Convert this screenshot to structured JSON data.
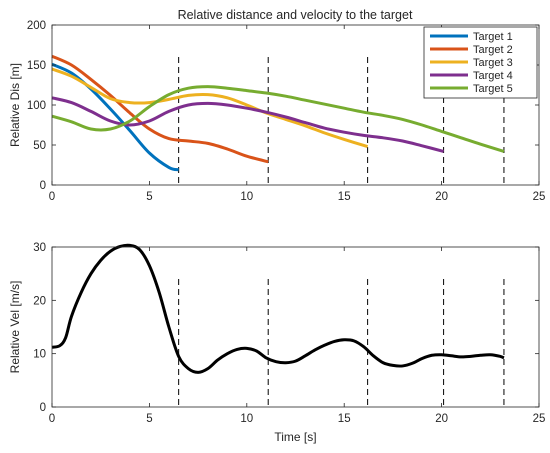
{
  "chart_data": [
    {
      "type": "line",
      "title": "Relative distance and velocity to the target",
      "xlabel": "",
      "ylabel": "Relative Dis [m]",
      "xlim": [
        0,
        25
      ],
      "ylim": [
        0,
        200
      ],
      "xticks": [
        0,
        5,
        10,
        15,
        20,
        25
      ],
      "yticks": [
        0,
        50,
        100,
        150,
        200
      ],
      "grid": false,
      "legend_position": "top-right",
      "vlines": [
        6.5,
        11.1,
        16.2,
        20.1,
        23.2
      ],
      "series": [
        {
          "name": "Target 1",
          "color": "#0072BD",
          "x": [
            0,
            1,
            2,
            3,
            4,
            5,
            6,
            6.5
          ],
          "y": [
            151,
            140,
            120,
            95,
            68,
            40,
            22,
            19
          ]
        },
        {
          "name": "Target 2",
          "color": "#D95319",
          "x": [
            0,
            1,
            2,
            3,
            4,
            5,
            6,
            7,
            8,
            9,
            10,
            11.1
          ],
          "y": [
            161,
            150,
            132,
            112,
            90,
            70,
            58,
            55,
            52,
            45,
            36,
            29
          ]
        },
        {
          "name": "Target 3",
          "color": "#EDB120",
          "x": [
            0,
            1,
            2,
            3,
            4,
            5,
            6,
            7,
            8,
            9,
            10,
            11,
            12,
            13,
            14,
            15,
            16.2
          ],
          "y": [
            145,
            136,
            122,
            108,
            103,
            103,
            107,
            112,
            113,
            109,
            100,
            90,
            82,
            74,
            65,
            57,
            48
          ]
        },
        {
          "name": "Target 4",
          "color": "#7E2F8E",
          "x": [
            0,
            1,
            2,
            3,
            4,
            5,
            6,
            7,
            8,
            9,
            10,
            11,
            12,
            13,
            14,
            15,
            16,
            17,
            18,
            19,
            20.1
          ],
          "y": [
            109,
            103,
            92,
            80,
            75,
            80,
            92,
            100,
            102,
            100,
            96,
            91,
            85,
            78,
            71,
            66,
            62,
            59,
            55,
            49,
            42
          ]
        },
        {
          "name": "Target 5",
          "color": "#77AC30",
          "x": [
            0,
            1,
            2,
            3,
            4,
            5,
            6,
            7,
            8,
            9,
            10,
            11,
            12,
            13,
            14,
            15,
            16,
            17,
            18,
            19,
            20,
            21,
            22,
            23.2
          ],
          "y": [
            86,
            79,
            70,
            70,
            80,
            98,
            113,
            121,
            123,
            121,
            118,
            115,
            111,
            106,
            101,
            96,
            91,
            87,
            82,
            75,
            67,
            59,
            51,
            42
          ]
        }
      ]
    },
    {
      "type": "line",
      "title": "",
      "xlabel": "Time [s]",
      "ylabel": "Relative Vel [m/s]",
      "xlim": [
        0,
        25
      ],
      "ylim": [
        0,
        30
      ],
      "xticks": [
        0,
        5,
        10,
        15,
        20,
        25
      ],
      "yticks": [
        0,
        10,
        20,
        30
      ],
      "grid": false,
      "vlines": [
        6.5,
        11.1,
        16.2,
        20.1,
        23.2
      ],
      "series": [
        {
          "color": "#000000",
          "x": [
            0,
            0.4,
            0.7,
            1,
            1.5,
            2,
            2.5,
            3,
            3.5,
            4,
            4.5,
            5,
            5.5,
            6,
            6.5,
            7,
            7.5,
            8,
            8.5,
            9,
            9.5,
            10,
            10.5,
            11,
            11.5,
            12,
            12.5,
            13,
            13.5,
            14,
            14.5,
            15,
            15.5,
            16,
            16.5,
            17,
            17.5,
            18,
            18.5,
            19,
            19.5,
            20,
            20.5,
            21,
            21.5,
            22,
            22.5,
            23,
            23.2
          ],
          "y": [
            11.2,
            11.5,
            13,
            17,
            21.5,
            25,
            27.5,
            29.2,
            30.1,
            30.3,
            29.5,
            26.5,
            21.5,
            15,
            9.5,
            7.2,
            6.5,
            7.2,
            8.8,
            10,
            10.8,
            11,
            10.5,
            9.2,
            8.5,
            8.3,
            8.6,
            9.6,
            10.7,
            11.6,
            12.3,
            12.6,
            12.4,
            11.3,
            9.6,
            8.3,
            7.8,
            7.7,
            8.2,
            9.1,
            9.7,
            9.8,
            9.6,
            9.4,
            9.5,
            9.7,
            9.8,
            9.5,
            9.2
          ]
        }
      ]
    }
  ]
}
